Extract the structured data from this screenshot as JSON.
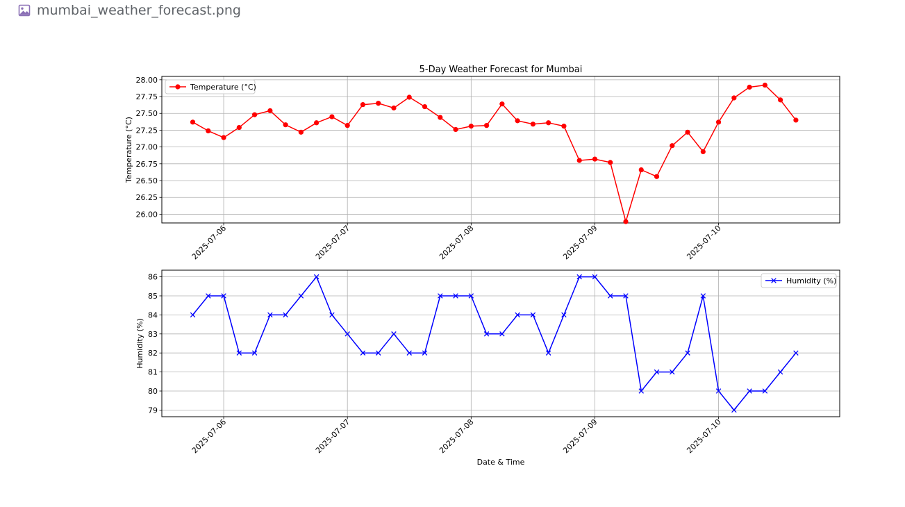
{
  "header": {
    "filename": "mumbai_weather_forecast.png",
    "icon": "image-file-icon"
  },
  "chart_data": [
    {
      "type": "line",
      "title": "5-Day Weather Forecast for Mumbai",
      "xlabel": "",
      "ylabel": "Temperature (°C)",
      "color": "#ff0000",
      "marker": "circle",
      "legend_position": "upper-left",
      "grid": true,
      "x_tick_labels": [
        "2025-07-06",
        "2025-07-07",
        "2025-07-08",
        "2025-07-09",
        "2025-07-10"
      ],
      "y_tick_labels": [
        "26.00",
        "26.25",
        "26.50",
        "26.75",
        "27.00",
        "27.25",
        "27.50",
        "27.75",
        "28.00"
      ],
      "y_ticks": [
        26.0,
        26.25,
        26.5,
        26.75,
        27.0,
        27.25,
        27.5,
        27.75,
        28.0
      ],
      "ylim": [
        25.87,
        28.05
      ],
      "xlim": [
        "2025-07-05 12:00",
        "2025-07-10 23:30"
      ],
      "x": [
        "2025-07-05 18:00",
        "2025-07-05 21:00",
        "2025-07-06 00:00",
        "2025-07-06 03:00",
        "2025-07-06 06:00",
        "2025-07-06 09:00",
        "2025-07-06 12:00",
        "2025-07-06 15:00",
        "2025-07-06 18:00",
        "2025-07-06 21:00",
        "2025-07-07 00:00",
        "2025-07-07 03:00",
        "2025-07-07 06:00",
        "2025-07-07 09:00",
        "2025-07-07 12:00",
        "2025-07-07 15:00",
        "2025-07-07 18:00",
        "2025-07-07 21:00",
        "2025-07-08 00:00",
        "2025-07-08 03:00",
        "2025-07-08 06:00",
        "2025-07-08 09:00",
        "2025-07-08 12:00",
        "2025-07-08 15:00",
        "2025-07-08 18:00",
        "2025-07-08 21:00",
        "2025-07-09 00:00",
        "2025-07-09 03:00",
        "2025-07-09 06:00",
        "2025-07-09 09:00",
        "2025-07-09 12:00",
        "2025-07-09 15:00",
        "2025-07-09 18:00",
        "2025-07-09 21:00",
        "2025-07-10 00:00",
        "2025-07-10 03:00",
        "2025-07-10 06:00",
        "2025-07-10 09:00",
        "2025-07-10 12:00",
        "2025-07-10 15:00"
      ],
      "series": [
        {
          "name": "Temperature (°C)",
          "values": [
            27.37,
            27.24,
            27.14,
            27.29,
            27.48,
            27.54,
            27.33,
            27.22,
            27.36,
            27.45,
            27.32,
            27.63,
            27.65,
            27.58,
            27.74,
            27.6,
            27.44,
            27.26,
            27.31,
            27.32,
            27.64,
            27.39,
            27.34,
            27.36,
            27.31,
            26.8,
            26.82,
            26.77,
            25.89,
            26.66,
            26.56,
            27.02,
            27.22,
            26.93,
            27.37,
            27.73,
            27.89,
            27.92,
            27.7,
            27.4
          ]
        }
      ]
    },
    {
      "type": "line",
      "title": "",
      "xlabel": "Date & Time",
      "ylabel": "Humidity (%)",
      "color": "#0000ff",
      "marker": "x",
      "legend_position": "upper-right",
      "grid": true,
      "x_tick_labels": [
        "2025-07-06",
        "2025-07-07",
        "2025-07-08",
        "2025-07-09",
        "2025-07-10"
      ],
      "y_tick_labels": [
        "79",
        "80",
        "81",
        "82",
        "83",
        "84",
        "85",
        "86"
      ],
      "y_ticks": [
        79,
        80,
        81,
        82,
        83,
        84,
        85,
        86
      ],
      "ylim": [
        78.65,
        86.35
      ],
      "xlim": [
        "2025-07-05 12:00",
        "2025-07-10 23:30"
      ],
      "x": [
        "2025-07-05 18:00",
        "2025-07-05 21:00",
        "2025-07-06 00:00",
        "2025-07-06 03:00",
        "2025-07-06 06:00",
        "2025-07-06 09:00",
        "2025-07-06 12:00",
        "2025-07-06 15:00",
        "2025-07-06 18:00",
        "2025-07-06 21:00",
        "2025-07-07 00:00",
        "2025-07-07 03:00",
        "2025-07-07 06:00",
        "2025-07-07 09:00",
        "2025-07-07 12:00",
        "2025-07-07 15:00",
        "2025-07-07 18:00",
        "2025-07-07 21:00",
        "2025-07-08 00:00",
        "2025-07-08 03:00",
        "2025-07-08 06:00",
        "2025-07-08 09:00",
        "2025-07-08 12:00",
        "2025-07-08 15:00",
        "2025-07-08 18:00",
        "2025-07-08 21:00",
        "2025-07-09 00:00",
        "2025-07-09 03:00",
        "2025-07-09 06:00",
        "2025-07-09 09:00",
        "2025-07-09 12:00",
        "2025-07-09 15:00",
        "2025-07-09 18:00",
        "2025-07-09 21:00",
        "2025-07-10 00:00",
        "2025-07-10 03:00",
        "2025-07-10 06:00",
        "2025-07-10 09:00",
        "2025-07-10 12:00",
        "2025-07-10 15:00"
      ],
      "series": [
        {
          "name": "Humidity (%)",
          "values": [
            84,
            85,
            85,
            82,
            82,
            84,
            84,
            85,
            86,
            84,
            83,
            82,
            82,
            83,
            82,
            82,
            85,
            85,
            85,
            83,
            83,
            84,
            84,
            82,
            84,
            86,
            86,
            85,
            85,
            80,
            81,
            81,
            82,
            85,
            80,
            79,
            80,
            80,
            81,
            82
          ]
        }
      ]
    }
  ]
}
